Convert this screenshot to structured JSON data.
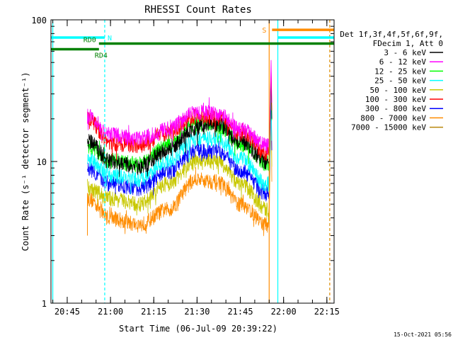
{
  "chart_data": {
    "type": "line",
    "title": "RHESSI Count Rates",
    "xlabel": "Start Time (06-Jul-09 20:39:22)",
    "ylabel": "Count Rate (s⁻¹ detector segment⁻¹)",
    "yscale": "log",
    "ylim": [
      1,
      100
    ],
    "xlim": [
      "20:39:22",
      "22:17:30"
    ],
    "x_ticks": [
      "20:45",
      "21:00",
      "21:15",
      "21:30",
      "21:45",
      "22:00",
      "22:15"
    ],
    "y_ticks": [
      "1",
      "10",
      "100"
    ],
    "info": [
      "Det 1f,3f,4f,5f,6f,9f,",
      "FDecim 1, Att 0"
    ],
    "timestamp": "15-Oct-2021 05:56",
    "data_start": "20:52",
    "data_end": "21:55",
    "spike_time": "21:55",
    "series": [
      {
        "name": "3 - 6 keV",
        "color": "#000000",
        "y": [
          14.0,
          10.0,
          9.2,
          12.0,
          17.5,
          18.5,
          14.0,
          10.0
        ]
      },
      {
        "name": "6 - 12 keV",
        "color": "#ff00ff",
        "y": [
          21.0,
          15.5,
          14.5,
          17.0,
          22.5,
          22.0,
          17.0,
          13.0
        ]
      },
      {
        "name": "12 - 25 keV",
        "color": "#00ff00",
        "y": [
          13.0,
          10.2,
          9.6,
          13.0,
          18.5,
          18.0,
          13.5,
          9.8
        ]
      },
      {
        "name": "25 - 50 keV",
        "color": "#00ffff",
        "y": [
          10.5,
          8.0,
          7.5,
          10.0,
          14.5,
          14.5,
          10.5,
          7.0
        ]
      },
      {
        "name": "50 - 100 keV",
        "color": "#c8c800",
        "y": [
          6.5,
          5.5,
          5.0,
          7.0,
          10.0,
          10.0,
          7.0,
          4.6
        ]
      },
      {
        "name": "100 - 300 keV",
        "color": "#ff0000",
        "y": [
          20.0,
          13.5,
          13.0,
          16.0,
          21.0,
          20.5,
          16.0,
          11.5
        ]
      },
      {
        "name": "300 - 800 keV",
        "color": "#0000ff",
        "y": [
          9.0,
          7.0,
          6.5,
          8.5,
          12.0,
          12.0,
          8.6,
          6.0
        ]
      },
      {
        "name": "800 - 7000 keV",
        "color": "#ff8c00",
        "y": [
          5.5,
          4.0,
          3.6,
          4.6,
          7.5,
          7.2,
          5.0,
          3.6
        ]
      },
      {
        "name": "7000 - 15000 keV",
        "color": "#b8860b",
        "y": []
      }
    ],
    "series_x": [
      "20:52",
      "21:00",
      "21:10",
      "21:20",
      "21:30",
      "21:37",
      "21:45",
      "21:54"
    ],
    "markers": [
      {
        "label": "",
        "color": "#00ffff",
        "style": "solid",
        "x": "20:40"
      },
      {
        "label": "",
        "color": "#00ffff",
        "style": "dashed",
        "x": "20:58"
      },
      {
        "label": "",
        "color": "#ff8c00",
        "style": "solid",
        "x": "21:55"
      },
      {
        "label": "",
        "color": "#00ffff",
        "style": "solid",
        "x": "21:58"
      },
      {
        "label": "",
        "color": "#00ffff",
        "style": "dashed",
        "x": "22:16"
      },
      {
        "label": "",
        "color": "#ff8c00",
        "style": "dashed",
        "x": "22:16"
      }
    ],
    "bars": [
      {
        "label": "N",
        "color": "#00ffff",
        "y": 75,
        "x0": "20:39:22",
        "x1": "20:58"
      },
      {
        "label": "",
        "color": "#00ffff",
        "y": 75,
        "x0": "21:58",
        "x1": "22:17:30"
      },
      {
        "label": "RD0",
        "color": "#008000",
        "y": 68,
        "x0": "20:56",
        "x1": "22:17:30"
      },
      {
        "label": "RD4",
        "color": "#008000",
        "y": 62,
        "x0": "20:39:22",
        "x1": "20:56"
      },
      {
        "label": "S",
        "color": "#ff8c00",
        "y": 85,
        "x0": "21:56",
        "x1": "22:17:30"
      }
    ]
  }
}
